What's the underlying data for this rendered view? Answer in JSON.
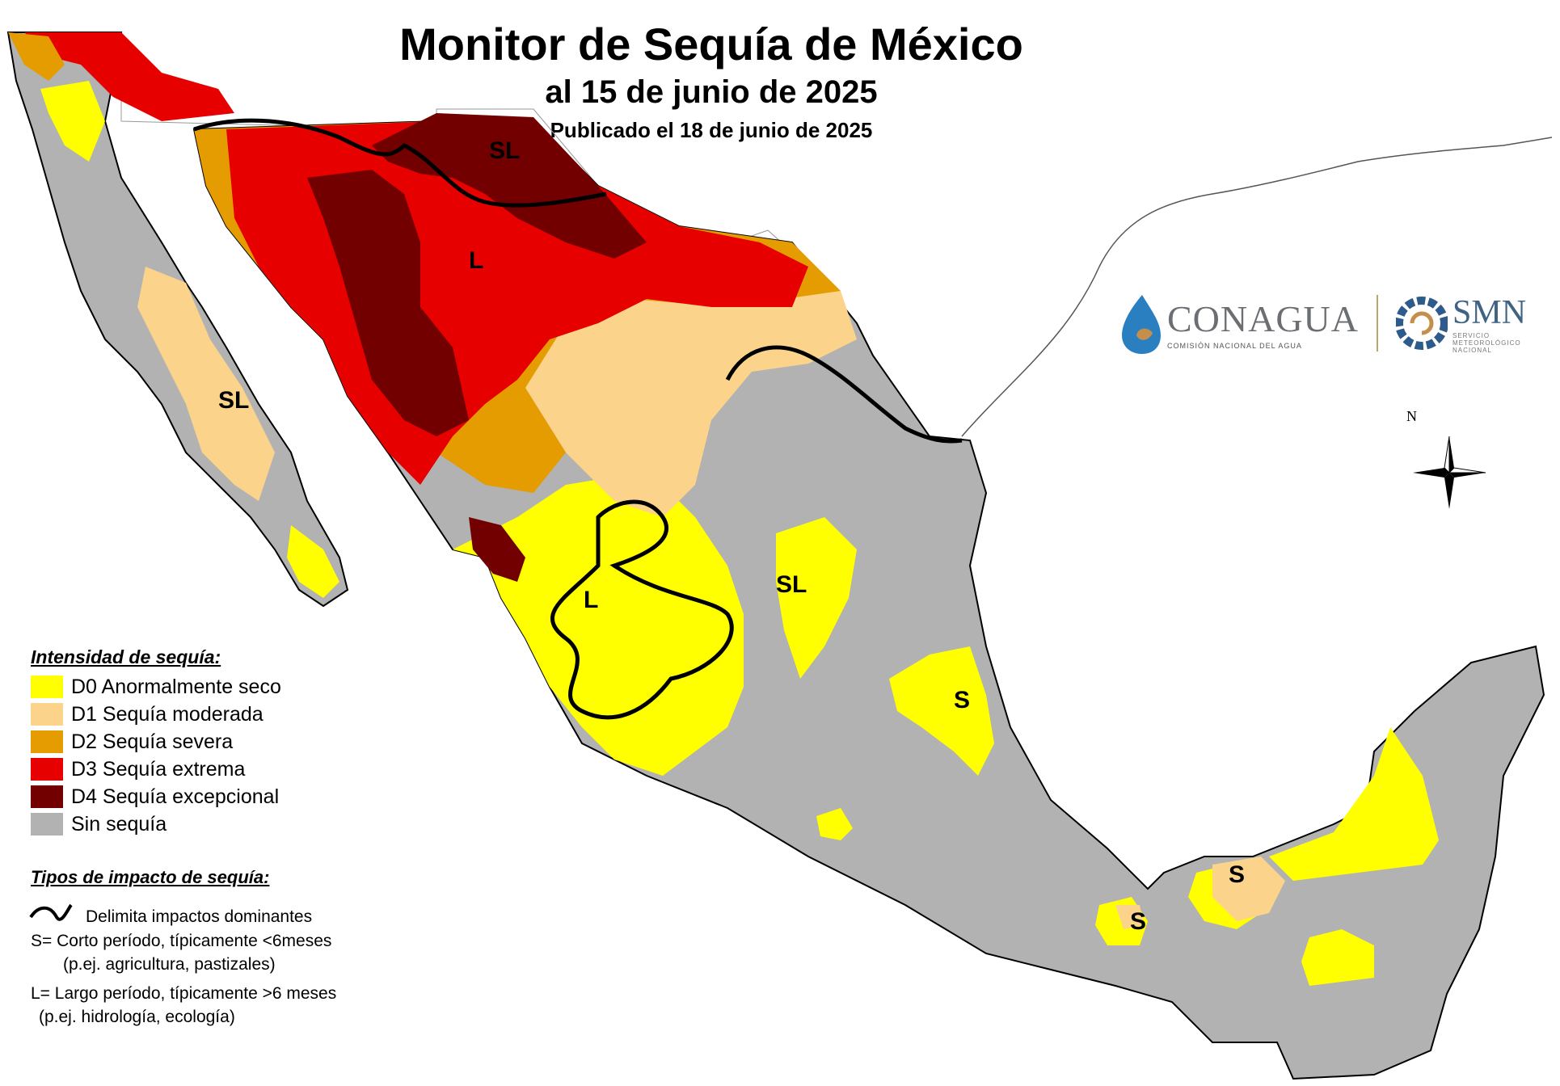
{
  "title": "Monitor de Sequía de México",
  "subtitle": "al 15 de junio de 2025",
  "published": "Publicado el 18 de junio de 2025",
  "legend": {
    "heading": "Intensidad de sequía:",
    "items": [
      {
        "code": "D0",
        "label": "D0 Anormalmente seco",
        "color": "#ffff00"
      },
      {
        "code": "D1",
        "label": "D1 Sequía moderada",
        "color": "#fcd38a"
      },
      {
        "code": "D2",
        "label": "D2 Sequía severa",
        "color": "#e49c00"
      },
      {
        "code": "D3",
        "label": "D3 Sequía extrema",
        "color": "#e60000"
      },
      {
        "code": "D4",
        "label": "D4 Sequía excepcional",
        "color": "#730000"
      },
      {
        "code": "none",
        "label": "Sin sequía",
        "color": "#b2b2b2"
      }
    ]
  },
  "impacts": {
    "heading": "Tipos de impacto de sequía:",
    "line_label": "Delimita impactos dominantes",
    "short": "S= Corto período, típicamente <6meses",
    "short_example": "(p.ej. agricultura, pastizales)",
    "long": "L= Largo período, típicamente >6 meses",
    "long_example": "(p.ej. hidrología, ecología)"
  },
  "map_labels": [
    "SL",
    "L",
    "SL",
    "L",
    "SL",
    "S",
    "S",
    "S"
  ],
  "logos": {
    "conagua_name": "CONAGUA",
    "conagua_sub": "COMISIÓN NACIONAL DEL AGUA",
    "smn_name": "SMN",
    "smn_sub_1": "SERVICIO",
    "smn_sub_2": "METEOROLÓGICO",
    "smn_sub_3": "NACIONAL"
  },
  "compass_label": "N",
  "colors": {
    "border": "#000000",
    "coast": "#000000",
    "no_drought": "#b2b2b2"
  }
}
